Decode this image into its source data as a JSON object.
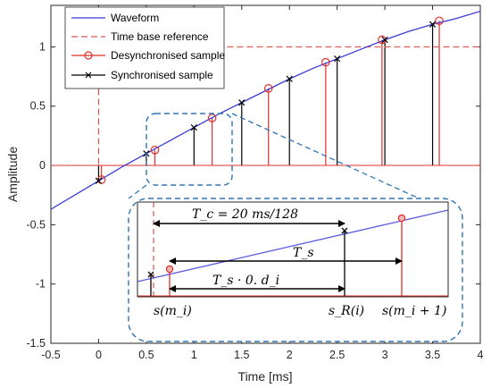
{
  "chart_data": {
    "type": "line",
    "xlabel": "Time [ms]",
    "ylabel": "Amplitude",
    "xlim": [
      -0.5,
      4
    ],
    "ylim": [
      -1.5,
      1.35
    ],
    "xticks": [
      -0.5,
      0,
      0.5,
      1,
      1.5,
      2,
      2.5,
      3,
      3.5,
      4
    ],
    "yticks": [
      -1.5,
      -1,
      -0.5,
      0,
      0.5,
      1
    ],
    "xtick_labels": [
      "-0.5",
      "0",
      "0.5",
      "1",
      "1.5",
      "2",
      "2.5",
      "3",
      "3.5",
      "4"
    ],
    "ytick_labels": [
      "-1.5",
      "-1",
      "-0.5",
      "0",
      "0.5",
      "1"
    ],
    "legend_position": "top-left",
    "series": [
      {
        "name": "Waveform",
        "color": "#3b3bd9",
        "style": "solid",
        "x": [
          -0.5,
          -0.25,
          0,
          0.25,
          0.5,
          0.75,
          1,
          1.25,
          1.5,
          1.75,
          2,
          2.25,
          2.5,
          2.75,
          3,
          3.25,
          3.5,
          3.75,
          4
        ],
        "y": [
          -0.37,
          -0.25,
          -0.13,
          -0.01,
          0.1,
          0.21,
          0.32,
          0.43,
          0.53,
          0.63,
          0.73,
          0.82,
          0.9,
          0.98,
          1.06,
          1.13,
          1.19,
          1.24,
          1.3
        ]
      },
      {
        "name": "Time base reference",
        "color": "#d9534f",
        "style": "dashed",
        "x": [
          -0.5,
          0,
          0.001,
          0.5,
          0.501,
          4
        ],
        "y": [
          0,
          0,
          1,
          1,
          1,
          1
        ]
      },
      {
        "name": "Desynchronised sample",
        "color": "#e0302b",
        "marker": "circle",
        "x": [
          0.03,
          0.59,
          1.19,
          1.78,
          2.38,
          2.97,
          3.57
        ],
        "y": [
          -0.12,
          0.13,
          0.4,
          0.65,
          0.87,
          1.06,
          1.22
        ]
      },
      {
        "name": "Synchronised sample",
        "color": "#000000",
        "marker": "x",
        "x": [
          0,
          0.5,
          1,
          1.5,
          2,
          2.5,
          3,
          3.5
        ],
        "y": [
          -0.13,
          0.1,
          0.32,
          0.53,
          0.73,
          0.9,
          1.06,
          1.19
        ]
      }
    ]
  },
  "inset": {
    "label_Tc": "T_c = 20 ms/128",
    "label_Ts": "T_s",
    "label_Tsd": "T_s · 0. d_i",
    "label_smi": "s(m_i)",
    "label_sRi": "s_R(i)",
    "label_smi1": "s(m_i + 1)"
  }
}
